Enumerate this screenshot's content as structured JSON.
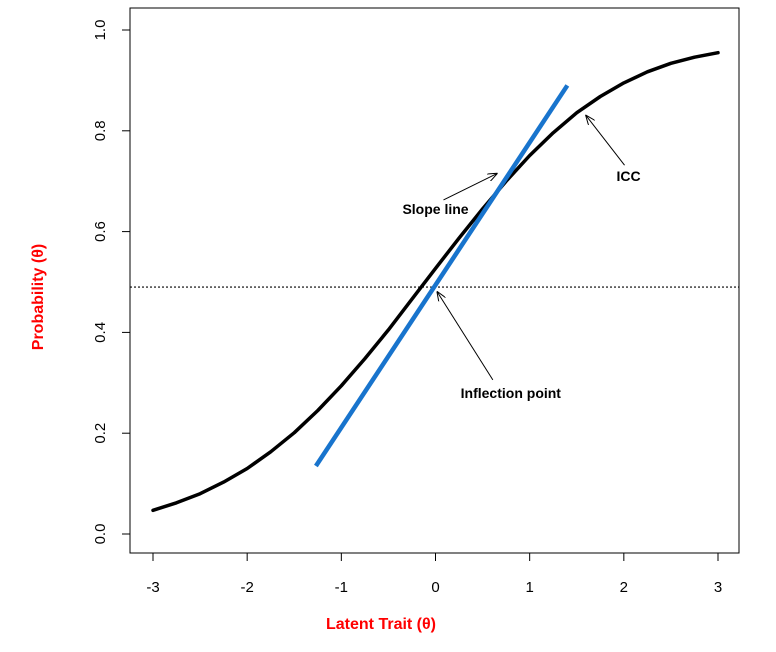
{
  "chart_data": {
    "type": "line",
    "title": "",
    "xlabel": "Latent Trait (θ)",
    "ylabel": "Probability (θ)",
    "xlim": [
      -3,
      3
    ],
    "ylim": [
      0,
      1
    ],
    "x_ticks": [
      "-3",
      "-2",
      "-1",
      "0",
      "1",
      "2",
      "3"
    ],
    "y_ticks": [
      "0.0",
      "0.2",
      "0.4",
      "0.6",
      "0.8",
      "1.0"
    ],
    "grid": false,
    "legend": "none",
    "colors": {
      "icc": "#000000",
      "slope": "#1874cd",
      "axis_title": "#ff0000",
      "reference": "#000000"
    },
    "series": [
      {
        "id": "icc",
        "x": [
          -3,
          -2.75,
          -2.5,
          -2.25,
          -2,
          -1.75,
          -1.5,
          -1.25,
          -1,
          -0.75,
          -0.5,
          -0.25,
          0,
          0.25,
          0.5,
          0.75,
          1,
          1.25,
          1.5,
          1.75,
          2,
          2.25,
          2.5,
          2.75,
          3
        ],
        "y": [
          0.047,
          0.062,
          0.08,
          0.103,
          0.13,
          0.163,
          0.201,
          0.245,
          0.294,
          0.348,
          0.405,
          0.466,
          0.527,
          0.587,
          0.645,
          0.7,
          0.751,
          0.796,
          0.836,
          0.868,
          0.895,
          0.917,
          0.934,
          0.946,
          0.955
        ]
      },
      {
        "id": "slope",
        "x": [
          -1.27,
          1.4
        ],
        "y": [
          0.135,
          0.89
        ]
      }
    ],
    "reference_line": {
      "orientation": "horizontal",
      "y": 0.49
    },
    "annotations": [
      {
        "id": "slope-line",
        "text": "Slope line",
        "text_at": [
          0.0,
          0.635
        ],
        "arrow_to": [
          0.65,
          0.715
        ]
      },
      {
        "id": "icc",
        "text": "ICC",
        "text_at": [
          2.05,
          0.7
        ],
        "arrow_to": [
          1.6,
          0.83
        ]
      },
      {
        "id": "inflection-point",
        "text": "Inflection point",
        "text_at": [
          0.8,
          0.27
        ],
        "arrow_to": [
          0.02,
          0.48
        ]
      }
    ]
  }
}
